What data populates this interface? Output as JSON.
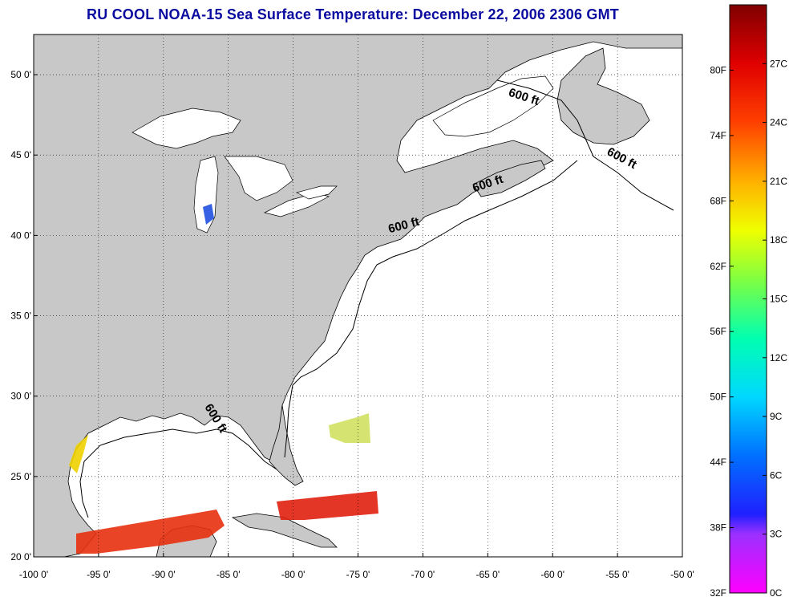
{
  "title": "RU COOL  NOAA-15  Sea Surface Temperature:  December 22, 2006 2306 GMT",
  "map": {
    "lon_range": [
      -100,
      -50
    ],
    "lat_range": [
      20,
      52.5
    ],
    "lon_ticks": [
      {
        "value": -100,
        "label": "-100 0'"
      },
      {
        "value": -95,
        "label": "-95 0'"
      },
      {
        "value": -90,
        "label": "-90 0'"
      },
      {
        "value": -85,
        "label": "-85 0'"
      },
      {
        "value": -80,
        "label": "-80 0'"
      },
      {
        "value": -75,
        "label": "-75 0'"
      },
      {
        "value": -70,
        "label": "-70 0'"
      },
      {
        "value": -65,
        "label": "-65 0'"
      },
      {
        "value": -60,
        "label": "-60 0'"
      },
      {
        "value": -55,
        "label": "-55 0'"
      },
      {
        "value": -50,
        "label": "-50 0'"
      }
    ],
    "lat_ticks": [
      {
        "value": 20,
        "label": "20 0'"
      },
      {
        "value": 25,
        "label": "25 0'"
      },
      {
        "value": 30,
        "label": "30 0'"
      },
      {
        "value": 35,
        "label": "35 0'"
      },
      {
        "value": 40,
        "label": "40 0'"
      },
      {
        "value": 45,
        "label": "45 0'"
      },
      {
        "value": 50,
        "label": "50 0'"
      }
    ],
    "grid": "dotted",
    "land_color": "#c8c8c8",
    "contour_labels": [
      {
        "text": "600 ft",
        "lon": -62.3,
        "lat": 48.4,
        "rotate": 18
      },
      {
        "text": "600 ft",
        "lon": -54.8,
        "lat": 44.6,
        "rotate": 28
      },
      {
        "text": "600 ft",
        "lon": -64.9,
        "lat": 43.0,
        "rotate": -18
      },
      {
        "text": "600 ft",
        "lon": -71.4,
        "lat": 40.4,
        "rotate": -15
      },
      {
        "text": "600 ft",
        "lon": -86.2,
        "lat": 28.5,
        "rotate": 58
      }
    ]
  },
  "colorbar": {
    "stops": [
      {
        "value": 0,
        "color": "#ff00ff"
      },
      {
        "value": 3,
        "color": "#9b30ff"
      },
      {
        "value": 4,
        "color": "#2020ff"
      },
      {
        "value": 7,
        "color": "#0070ff"
      },
      {
        "value": 10,
        "color": "#00d8ff"
      },
      {
        "value": 13,
        "color": "#00ffb0"
      },
      {
        "value": 16,
        "color": "#80ff40"
      },
      {
        "value": 18.5,
        "color": "#f0ff00"
      },
      {
        "value": 21,
        "color": "#ffb000"
      },
      {
        "value": 24,
        "color": "#ff4000"
      },
      {
        "value": 27,
        "color": "#e00000"
      },
      {
        "value": 30,
        "color": "#800000"
      }
    ],
    "range_c": [
      0,
      30
    ],
    "celsius_labels": [
      "0C",
      "3C",
      "6C",
      "9C",
      "12C",
      "15C",
      "18C",
      "21C",
      "24C",
      "27C"
    ],
    "fahrenheit_labels": [
      "32F",
      "38F",
      "44F",
      "50F",
      "56F",
      "62F",
      "68F",
      "74F",
      "80F"
    ]
  },
  "sst_patches": [
    {
      "region": "gulf-south-band",
      "color": "#e83010"
    },
    {
      "region": "caribbean-band",
      "color": "#e02010"
    },
    {
      "region": "texas-coast",
      "color": "#f0d000"
    },
    {
      "region": "atlantic-patch",
      "color": "#d0e060"
    },
    {
      "region": "lake-michigan",
      "color": "#2050e0"
    }
  ]
}
